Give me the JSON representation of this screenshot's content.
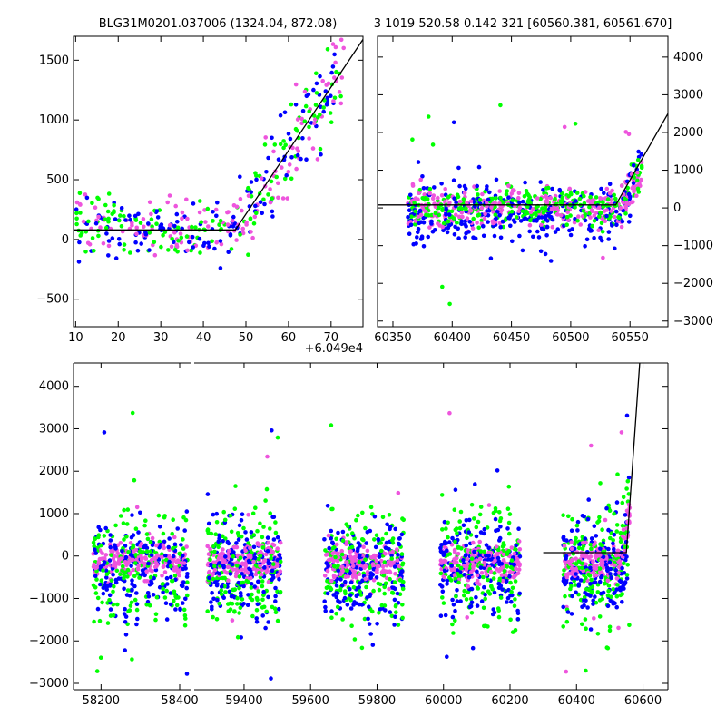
{
  "titles": {
    "left": "BLG31M0201.037006 (1324.04, 872.08)",
    "right": "3 1019 520.58 0.142 321 [60560.381, 60561.670]"
  },
  "colors": {
    "series_a": "#0000ff",
    "series_b": "#00ff00",
    "series_c": "#ee55dd",
    "model": "#000000"
  },
  "chart_data": [
    {
      "id": "zoom",
      "type": "scatter",
      "xlim": [
        9.5,
        77.5
      ],
      "ylim": [
        -730,
        1700
      ],
      "x_offset_label": "+6.049e4",
      "xticks": [
        10,
        20,
        30,
        40,
        50,
        60,
        70
      ],
      "yticks": [
        -500,
        0,
        500,
        1000,
        1500
      ],
      "model_line": [
        [
          9.5,
          80
        ],
        [
          47.5,
          80
        ],
        [
          78,
          1700
        ]
      ]
    },
    {
      "id": "season",
      "type": "scatter",
      "xlim": [
        60337,
        60582
      ],
      "ylim": [
        -3150,
        4550
      ],
      "xticks": [
        60350,
        60400,
        60450,
        60500,
        60550
      ],
      "yticks": [
        -3000,
        -2000,
        -1000,
        0,
        1000,
        2000,
        3000,
        4000
      ],
      "model_line": [
        [
          60337,
          80
        ],
        [
          60538,
          80
        ],
        [
          60582,
          2500
        ]
      ]
    },
    {
      "id": "full",
      "type": "scatter",
      "ylim": [
        -3150,
        4550
      ],
      "xticks_left": [
        58200,
        58400
      ],
      "xticks_right": [
        59400,
        59600,
        59800,
        60000,
        60200,
        60400,
        60600
      ],
      "yticks": [
        -3000,
        -2000,
        -1000,
        0,
        1000,
        2000,
        3000,
        4000
      ],
      "segments": [
        {
          "xlim": [
            58130,
            58430
          ]
        },
        {
          "xlim": [
            59250,
            60675
          ]
        }
      ],
      "seasons": [
        58200,
        58300,
        58400,
        59300,
        59400,
        59500,
        59700,
        59800,
        59900,
        60050,
        60150,
        60250,
        60400,
        60500,
        60560
      ],
      "model_line": [
        [
          60300,
          80
        ],
        [
          60550,
          80
        ],
        [
          60590,
          4550
        ]
      ]
    }
  ]
}
